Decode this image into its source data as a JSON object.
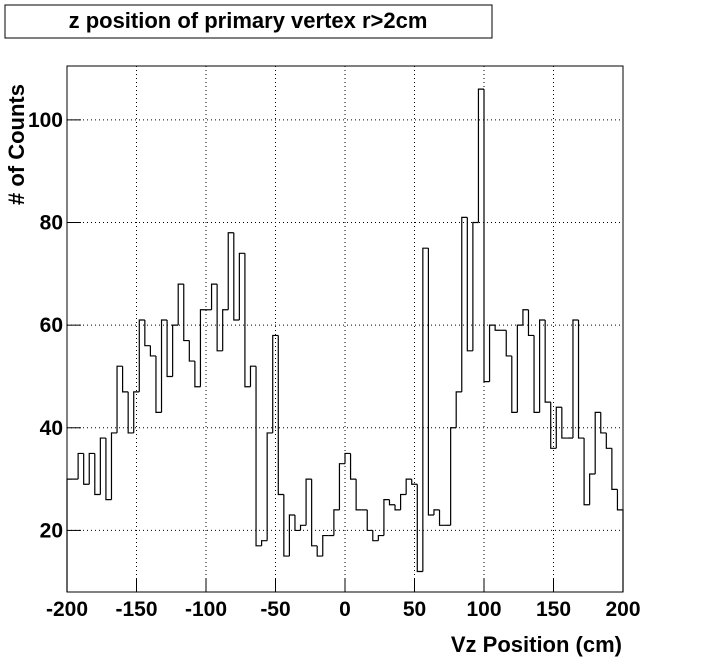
{
  "chart_data": {
    "type": "histogram",
    "title": "z position of primary vertex r>2cm",
    "x_label": "Vz Position (cm)",
    "y_label": "# of Counts",
    "bins": [
      -200,
      -196,
      -192,
      -188,
      -184,
      -180,
      -176,
      -172,
      -168,
      -164,
      -160,
      -156,
      -152,
      -148,
      -144,
      -140,
      -136,
      -132,
      -128,
      -124,
      -120,
      -116,
      -112,
      -108,
      -104,
      -100,
      -96,
      -92,
      -88,
      -84,
      -80,
      -76,
      -72,
      -68,
      -64,
      -60,
      -56,
      -52,
      -48,
      -44,
      -40,
      -36,
      -32,
      -28,
      -24,
      -20,
      -16,
      -12,
      -8,
      -4,
      0,
      4,
      8,
      12,
      16,
      20,
      24,
      28,
      32,
      36,
      40,
      44,
      48,
      52,
      56,
      60,
      64,
      68,
      72,
      76,
      80,
      84,
      88,
      92,
      96,
      100,
      104,
      108,
      112,
      116,
      120,
      124,
      128,
      132,
      136,
      140,
      144,
      148,
      152,
      156,
      160,
      164,
      168,
      172,
      176,
      180,
      184,
      188,
      192,
      196,
      200
    ],
    "values": [
      30,
      30,
      35,
      29,
      35,
      27,
      38,
      26,
      39,
      52,
      47,
      39,
      47,
      61,
      56,
      54,
      43,
      61,
      50,
      60,
      68,
      57,
      53,
      48,
      63,
      63,
      68,
      55,
      63,
      78,
      61,
      74,
      48,
      52,
      17,
      18,
      39,
      58,
      27,
      15,
      23,
      20,
      21,
      30,
      17,
      15,
      19,
      19,
      24,
      33,
      35,
      30,
      24,
      24,
      20,
      18,
      19,
      26,
      25,
      24,
      27,
      30,
      29,
      12,
      75,
      23,
      24,
      21,
      21,
      40,
      47,
      81,
      55,
      80,
      106,
      49,
      60,
      59,
      59,
      54,
      43,
      60,
      63,
      58,
      43,
      61,
      45,
      36,
      44,
      38,
      38,
      61,
      38,
      25,
      31,
      43,
      39,
      36,
      28,
      24
    ],
    "xlim": [
      -200,
      200
    ],
    "ylim": [
      8,
      110.5
    ],
    "xticks": [
      -200,
      -150,
      -100,
      -50,
      0,
      50,
      100,
      150,
      200
    ],
    "yticks": [
      20,
      40,
      60,
      80,
      100
    ],
    "grid": true,
    "color": "#000000"
  }
}
